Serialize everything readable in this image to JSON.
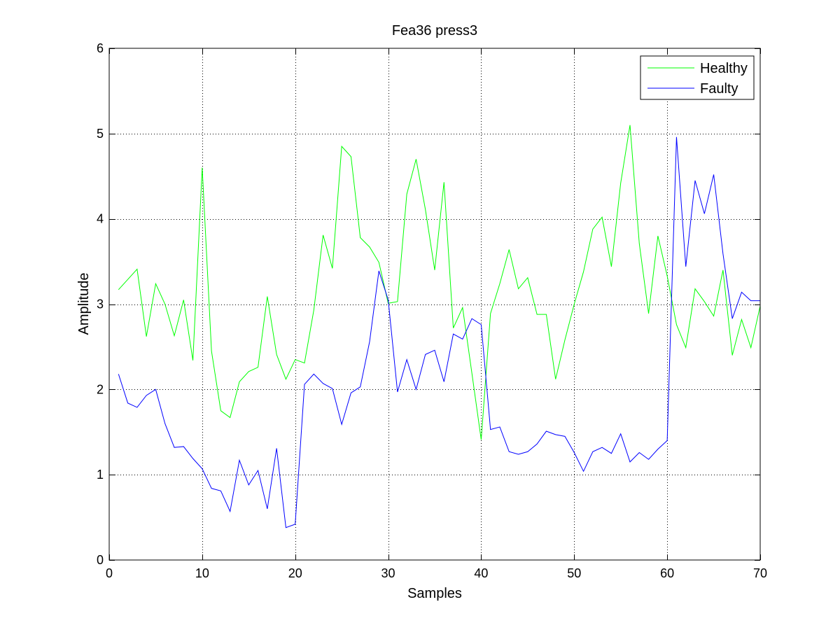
{
  "chart_data": {
    "type": "line",
    "title": "Fea36  press3",
    "xlabel": "Samples",
    "ylabel": "Amplitude",
    "xlim": [
      0,
      70
    ],
    "ylim": [
      0,
      6
    ],
    "xticks": [
      0,
      10,
      20,
      30,
      40,
      50,
      60,
      70
    ],
    "yticks": [
      0,
      1,
      2,
      3,
      4,
      5,
      6
    ],
    "grid": true,
    "legend_position": "top-right",
    "x": [
      1,
      2,
      3,
      4,
      5,
      6,
      7,
      8,
      9,
      10,
      11,
      12,
      13,
      14,
      15,
      16,
      17,
      18,
      19,
      20,
      21,
      22,
      23,
      24,
      25,
      26,
      27,
      28,
      29,
      30,
      31,
      32,
      33,
      34,
      35,
      36,
      37,
      38,
      39,
      40,
      41,
      42,
      43,
      44,
      45,
      46,
      47,
      48,
      49,
      50,
      51,
      52,
      53,
      54,
      55,
      56,
      57,
      58,
      59,
      60,
      61,
      62,
      63,
      64,
      65,
      66,
      67,
      68,
      69,
      70
    ],
    "series": [
      {
        "name": "Healthy",
        "color": "#00ff00",
        "values": [
          3.17,
          3.29,
          3.41,
          2.62,
          3.24,
          3.0,
          2.63,
          3.05,
          2.34,
          4.6,
          2.45,
          1.75,
          1.67,
          2.09,
          2.21,
          2.26,
          3.09,
          2.41,
          2.12,
          2.35,
          2.31,
          2.93,
          3.81,
          3.42,
          4.85,
          4.73,
          3.78,
          3.67,
          3.49,
          3.01,
          3.03,
          4.29,
          4.7,
          4.11,
          3.4,
          4.43,
          2.72,
          2.96,
          2.19,
          1.41,
          2.89,
          3.24,
          3.64,
          3.18,
          3.31,
          2.88,
          2.88,
          2.12,
          2.58,
          3.0,
          3.38,
          3.88,
          4.02,
          3.44,
          4.42,
          5.1,
          3.71,
          2.89,
          3.8,
          3.33,
          2.76,
          2.49,
          3.18,
          3.03,
          2.86,
          3.4,
          2.4,
          2.82,
          2.49,
          2.98
        ]
      },
      {
        "name": "Faulty",
        "color": "#0000ff",
        "values": [
          2.18,
          1.84,
          1.79,
          1.93,
          2.0,
          1.6,
          1.32,
          1.33,
          1.19,
          1.07,
          0.84,
          0.81,
          0.57,
          1.17,
          0.88,
          1.05,
          0.6,
          1.31,
          0.38,
          0.42,
          2.06,
          2.18,
          2.07,
          2.01,
          1.59,
          1.96,
          2.03,
          2.56,
          3.39,
          3.05,
          1.97,
          2.35,
          2.0,
          2.41,
          2.46,
          2.09,
          2.65,
          2.59,
          2.83,
          2.76,
          1.53,
          1.56,
          1.27,
          1.24,
          1.27,
          1.36,
          1.51,
          1.47,
          1.45,
          1.26,
          1.04,
          1.27,
          1.32,
          1.25,
          1.48,
          1.15,
          1.26,
          1.18,
          1.3,
          1.4,
          4.96,
          3.44,
          4.45,
          4.06,
          4.52,
          3.59,
          2.83,
          3.14,
          3.04,
          3.04
        ]
      }
    ]
  }
}
